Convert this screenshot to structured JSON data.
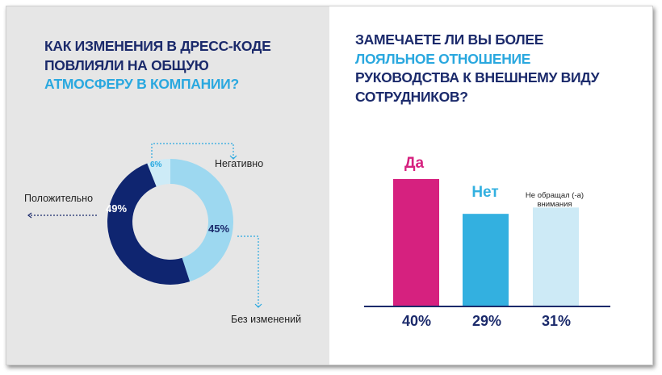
{
  "chart_data": [
    {
      "type": "pie",
      "title": "Как изменения в дресс-коде повлияли на общую атмосферу в компании?",
      "title_lines": [
        "Как изменения в дресс-коде",
        "повлияли на общую"
      ],
      "title_highlight": "атмосферу в компании?",
      "categories": [
        "Без изменений",
        "Положительно",
        "Негативно"
      ],
      "values": [
        45,
        49,
        6
      ],
      "data_labels": [
        "45%",
        "49%",
        "6%"
      ],
      "colors": [
        "#9dd8f0",
        "#0f2570",
        "#cdebf7"
      ],
      "donut": true
    },
    {
      "type": "bar",
      "title": "Замечаете ли вы более лояльное отношение руководства к внешнему виду сотрудников?",
      "title_line1": "Замечаете ли вы более",
      "title_highlight": "лояльное отношение",
      "title_lines_rest": [
        "руководства к внешнему виду",
        "сотрудников?"
      ],
      "categories": [
        "Да",
        "Нет",
        "Не обращал (-а) внимания"
      ],
      "category_lines": [
        [
          "Да"
        ],
        [
          "Нет"
        ],
        [
          "Не обращал (-а)",
          "внимания"
        ]
      ],
      "values": [
        40,
        29,
        31
      ],
      "data_labels": [
        "40%",
        "29%",
        "31%"
      ],
      "colors": [
        "#d6217f",
        "#33b0e0",
        "#cdeaf6"
      ],
      "label_colors": [
        "#d6217f",
        "#33b0e0",
        "#222222"
      ]
    }
  ],
  "colors": {
    "title": "#1b2a6b",
    "highlight": "#2aa8df",
    "panel": "#e6e6e6"
  }
}
